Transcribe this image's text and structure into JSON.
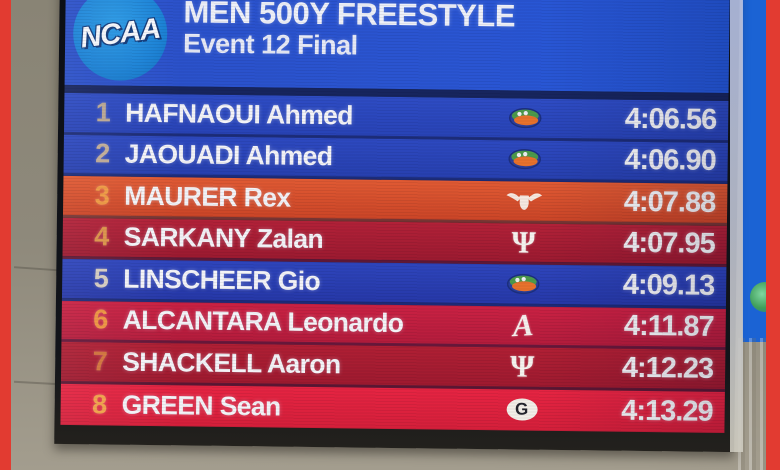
{
  "header": {
    "logo_text": "NCAA",
    "title": "MEN 500Y FREESTYLE",
    "subtitle": "Event 12 Final"
  },
  "results": [
    {
      "rank": "1",
      "name": "HAFNAOUI Ahmed",
      "team_icon": "florida-gators-icon",
      "time": "4:06.56",
      "bg_top": "#2e4cc4",
      "bg_bottom": "#2843b6",
      "rank_color": "#bba893"
    },
    {
      "rank": "2",
      "name": "JAOUADI Ahmed",
      "team_icon": "florida-gators-icon",
      "time": "4:06.90",
      "bg_top": "#2d49c0",
      "bg_bottom": "#2740af",
      "rank_color": "#c3ae98"
    },
    {
      "rank": "3",
      "name": "MAURER Rex",
      "team_icon": "texas-longhorn-icon",
      "time": "4:07.88",
      "bg_top": "#e05a33",
      "bg_bottom": "#cb4527",
      "rank_color": "#f09a42"
    },
    {
      "rank": "4",
      "name": "SARKANY Zalan",
      "team_icon": "indiana-trident-icon",
      "time": "4:07.95",
      "bg_top": "#b22138",
      "bg_bottom": "#9c1a30",
      "rank_color": "#dd9448"
    },
    {
      "rank": "5",
      "name": "LINSCHEER Gio",
      "team_icon": "florida-gators-icon",
      "time": "4:09.13",
      "bg_top": "#2e45bc",
      "bg_bottom": "#2638a8",
      "rank_color": "#d6cdc2"
    },
    {
      "rank": "6",
      "name": "ALCANTARA Leonardo",
      "team_icon": "alabama-script-a-icon",
      "time": "4:11.87",
      "bg_top": "#ca2143",
      "bg_bottom": "#b41c3c",
      "rank_color": "#ef9440"
    },
    {
      "rank": "7",
      "name": "SHACKELL Aaron",
      "team_icon": "indiana-trident-icon",
      "time": "4:12.23",
      "bg_top": "#b01f34",
      "bg_bottom": "#9e1a2f",
      "rank_color": "#d4753c"
    },
    {
      "rank": "8",
      "name": "GREEN Sean",
      "team_icon": "georgia-g-icon",
      "time": "4:13.29",
      "bg_top": "#e62442",
      "bg_bottom": "#d41f3a",
      "rank_color": "#f2a24a"
    }
  ],
  "colors": {
    "frame_red": "#e23b31",
    "header_blue": "#2a52cd",
    "ncaa_circle_blue": "#1b82d6",
    "wall_gray": "#8e897b",
    "banner_blue": "#1b63d4",
    "text_white": "#f3f3f7"
  }
}
